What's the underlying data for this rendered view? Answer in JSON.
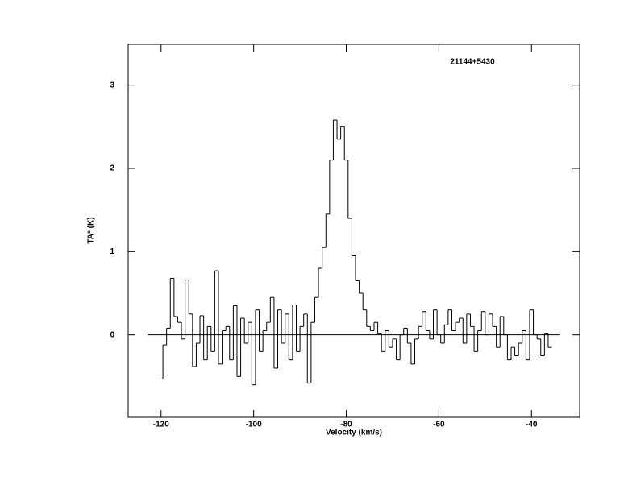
{
  "chart_data": {
    "type": "step",
    "title": "21144+5430",
    "x_label": "Velocity (km/s)",
    "y_label": "TA* (K)",
    "xlim": [
      -127.1,
      -29.6
    ],
    "ylim": [
      -0.99,
      3.49
    ],
    "xticks": [
      -120,
      -100,
      -80,
      -60,
      -40
    ],
    "yticks": [
      0,
      1,
      2,
      3
    ],
    "color": "#000000",
    "x": [
      -120.0,
      -119.2,
      -118.4,
      -117.6,
      -116.8,
      -116.0,
      -115.2,
      -114.4,
      -113.6,
      -112.8,
      -112.0,
      -111.2,
      -110.4,
      -109.6,
      -108.8,
      -108.0,
      -107.2,
      -106.4,
      -105.6,
      -104.8,
      -104.0,
      -103.2,
      -102.4,
      -101.6,
      -100.8,
      -100.0,
      -99.2,
      -98.4,
      -97.6,
      -96.8,
      -96.0,
      -95.2,
      -94.4,
      -93.6,
      -92.8,
      -92.0,
      -91.2,
      -90.4,
      -89.6,
      -88.8,
      -88.0,
      -87.2,
      -86.4,
      -85.6,
      -84.8,
      -84.0,
      -83.2,
      -82.4,
      -81.6,
      -80.8,
      -80.0,
      -79.2,
      -78.4,
      -77.6,
      -76.8,
      -76.0,
      -75.2,
      -74.4,
      -73.6,
      -72.8,
      -72.0,
      -71.2,
      -70.4,
      -69.6,
      -68.8,
      -68.0,
      -67.2,
      -66.4,
      -65.6,
      -64.8,
      -64.0,
      -63.2,
      -62.4,
      -61.6,
      -60.8,
      -60.0,
      -59.2,
      -58.4,
      -57.6,
      -56.8,
      -56.0,
      -55.2,
      -54.4,
      -53.6,
      -52.8,
      -52.0,
      -51.2,
      -50.4,
      -49.6,
      -48.8,
      -48.0,
      -47.2,
      -46.4,
      -45.6,
      -44.8,
      -44.0,
      -43.2,
      -42.4,
      -41.6,
      -40.8,
      -40.0,
      -39.2,
      -38.4,
      -37.6,
      -36.8,
      -36.0
    ],
    "values": [
      -0.53,
      -0.12,
      0.08,
      0.68,
      0.22,
      0.15,
      -0.05,
      0.66,
      0.25,
      -0.38,
      -0.1,
      0.23,
      -0.3,
      0.1,
      -0.2,
      0.77,
      -0.35,
      0.05,
      0.1,
      -0.3,
      0.35,
      -0.5,
      0.2,
      -0.1,
      0.15,
      -0.6,
      0.3,
      -0.2,
      0.05,
      0.15,
      0.45,
      -0.4,
      0.3,
      -0.1,
      0.25,
      -0.3,
      0.36,
      -0.2,
      0.1,
      0.25,
      -0.58,
      0.15,
      0.45,
      0.8,
      1.05,
      1.45,
      2.1,
      2.58,
      2.35,
      2.5,
      2.1,
      1.4,
      0.95,
      0.65,
      0.5,
      0.3,
      0.1,
      0.05,
      0.15,
      0.02,
      -0.2,
      0.05,
      -0.15,
      -0.05,
      -0.3,
      0.0,
      0.08,
      -0.1,
      -0.35,
      -0.05,
      0.1,
      0.28,
      0.05,
      -0.05,
      0.3,
      0.0,
      -0.1,
      0.12,
      0.3,
      0.05,
      0.15,
      0.2,
      -0.1,
      0.25,
      0.1,
      -0.2,
      0.05,
      0.28,
      0.0,
      0.25,
      0.1,
      -0.15,
      0.22,
      0.0,
      -0.3,
      -0.15,
      -0.25,
      -0.1,
      0.05,
      -0.3,
      0.3,
      0.0,
      -0.05,
      -0.25,
      0.02,
      -0.15
    ]
  }
}
